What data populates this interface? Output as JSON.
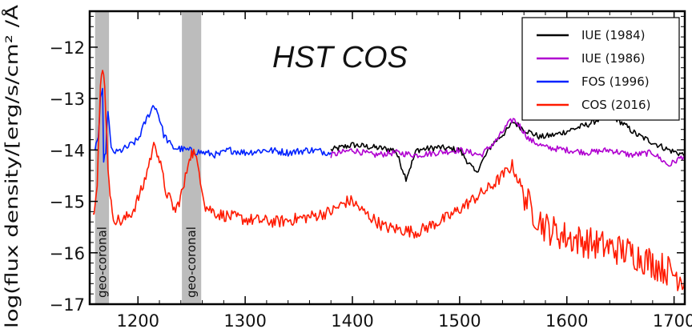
{
  "chart_data": {
    "type": "line",
    "title": "",
    "annotation": "HST COS",
    "xlabel": "",
    "ylabel": "log(flux density/[erg/s/cm² /Å",
    "xlim": [
      1155,
      1710
    ],
    "ylim": [
      -17,
      -11.3
    ],
    "xticks": [
      1200,
      1300,
      1400,
      1500,
      1600,
      1700
    ],
    "yticks": [
      -17,
      -16,
      -15,
      -14,
      -13,
      -12
    ],
    "xtick_labels": [
      "1200",
      "1300",
      "1400",
      "1500",
      "1600",
      "1700"
    ],
    "ytick_labels": [
      "−17",
      "−16",
      "−15",
      "−14",
      "−13",
      "−12"
    ],
    "shaded_bands": [
      {
        "x0": 1160,
        "x1": 1173,
        "label": "geo-coronal"
      },
      {
        "x0": 1241,
        "x1": 1259,
        "label": "geo-coronal"
      }
    ],
    "legend_position": "top-right",
    "series": [
      {
        "name": "IUE (1984)",
        "color": "#000000",
        "x": [
          1380,
          1400,
          1420,
          1440,
          1450,
          1460,
          1480,
          1500,
          1515,
          1530,
          1545,
          1550,
          1560,
          1575,
          1590,
          1605,
          1620,
          1635,
          1640,
          1650,
          1665,
          1680,
          1695,
          1710
        ],
        "y": [
          -14.0,
          -13.9,
          -13.95,
          -14.0,
          -14.55,
          -14.0,
          -13.95,
          -14.0,
          -14.45,
          -13.9,
          -13.6,
          -13.45,
          -13.6,
          -13.75,
          -13.7,
          -13.6,
          -13.5,
          -13.35,
          -13.3,
          -13.45,
          -13.7,
          -13.85,
          -14.0,
          -14.1
        ]
      },
      {
        "name": "IUE (1986)",
        "color": "#b000d0",
        "x": [
          1380,
          1400,
          1420,
          1440,
          1460,
          1480,
          1500,
          1520,
          1535,
          1545,
          1550,
          1555,
          1565,
          1580,
          1600,
          1620,
          1640,
          1660,
          1680,
          1695,
          1710
        ],
        "y": [
          -14.1,
          -14.0,
          -14.1,
          -14.05,
          -14.1,
          -14.05,
          -14.0,
          -14.1,
          -13.8,
          -13.5,
          -13.4,
          -13.5,
          -13.8,
          -13.95,
          -14.0,
          -14.05,
          -14.0,
          -14.1,
          -14.05,
          -14.3,
          -14.1
        ]
      },
      {
        "name": "FOS (1996)",
        "color": "#0022ff",
        "x": [
          1160,
          1163,
          1165,
          1167,
          1168,
          1170,
          1172,
          1175,
          1180,
          1190,
          1200,
          1208,
          1214,
          1216,
          1219,
          1224,
          1232,
          1245,
          1260,
          1275,
          1285,
          1300,
          1320,
          1340,
          1360,
          1380
        ],
        "y": [
          -14.0,
          -13.8,
          -13.0,
          -12.8,
          -14.3,
          -14.0,
          -13.2,
          -14.0,
          -14.05,
          -13.95,
          -13.8,
          -13.4,
          -13.15,
          -13.15,
          -13.3,
          -13.7,
          -13.95,
          -14.0,
          -14.05,
          -14.1,
          -14.0,
          -14.05,
          -14.0,
          -14.05,
          -14.0,
          -14.05
        ]
      },
      {
        "name": "COS (2016)",
        "color": "#ff1a00",
        "x": [
          1158,
          1162,
          1165,
          1167,
          1169,
          1172,
          1176,
          1185,
          1195,
          1205,
          1211,
          1216,
          1220,
          1226,
          1235,
          1243,
          1248,
          1252,
          1257,
          1263,
          1275,
          1300,
          1330,
          1360,
          1380,
          1395,
          1400,
          1410,
          1430,
          1460,
          1490,
          1510,
          1530,
          1540,
          1549,
          1555,
          1565,
          1580,
          1600,
          1620,
          1640,
          1660,
          1680,
          1700,
          1710
        ],
        "y": [
          -15.3,
          -14.6,
          -12.8,
          -12.45,
          -12.7,
          -14.3,
          -15.3,
          -15.4,
          -15.2,
          -14.7,
          -14.2,
          -13.85,
          -14.2,
          -14.8,
          -15.2,
          -14.7,
          -14.1,
          -14.05,
          -14.4,
          -15.1,
          -15.25,
          -15.35,
          -15.4,
          -15.3,
          -15.2,
          -15.0,
          -15.0,
          -15.2,
          -15.5,
          -15.6,
          -15.3,
          -15.0,
          -14.7,
          -14.5,
          -14.3,
          -14.6,
          -15.1,
          -15.5,
          -15.7,
          -15.8,
          -15.9,
          -16.0,
          -16.2,
          -16.4,
          -16.5
        ]
      }
    ]
  }
}
